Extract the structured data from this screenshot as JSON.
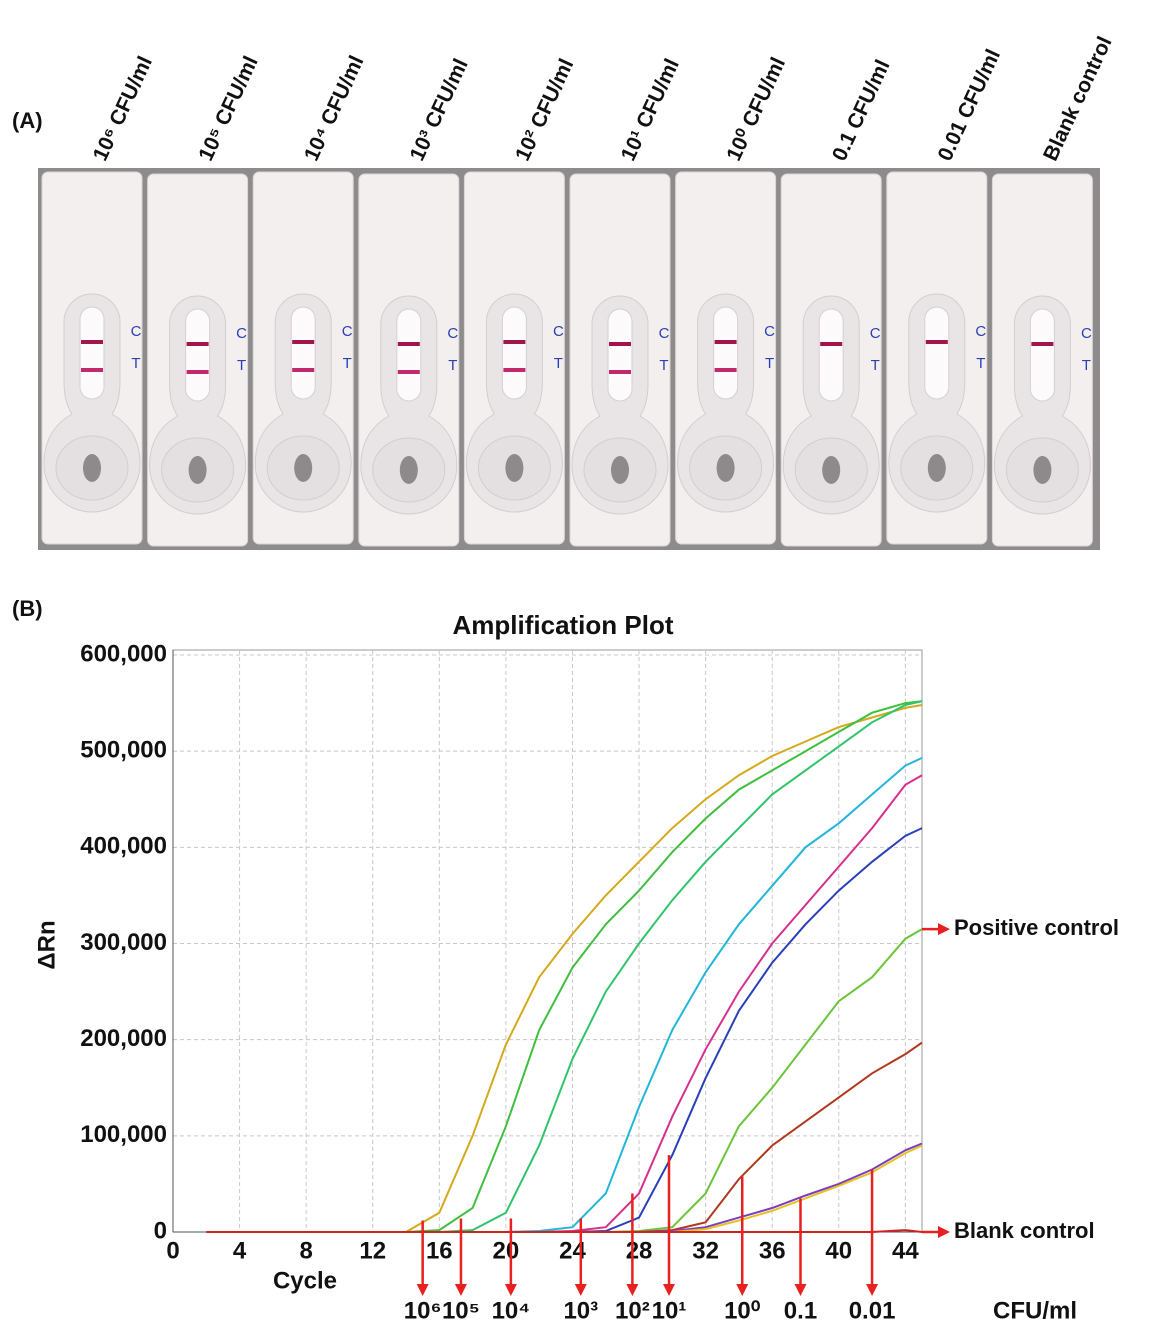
{
  "panel_a": {
    "label": "(A)",
    "strips": [
      {
        "label": "10⁶ CFU/ml",
        "test_line": true
      },
      {
        "label": "10⁵ CFU/ml",
        "test_line": true
      },
      {
        "label": "10⁴ CFU/ml",
        "test_line": true
      },
      {
        "label": "10³ CFU/ml",
        "test_line": true
      },
      {
        "label": "10² CFU/ml",
        "test_line": true
      },
      {
        "label": "10¹ CFU/ml",
        "test_line": true
      },
      {
        "label": "10⁰ CFU/ml",
        "test_line": true
      },
      {
        "label": "0.1 CFU/ml",
        "test_line": false
      },
      {
        "label": "0.01 CFU/ml",
        "test_line": false
      },
      {
        "label": "Blank control",
        "test_line": false
      }
    ],
    "control_mark": "C",
    "test_mark": "T"
  },
  "chart_data": {
    "type": "line",
    "panel_label": "(B)",
    "title": "Amplification Plot",
    "x_label": "Cycle",
    "y_label": "ΔRn",
    "xlim": [
      0,
      45
    ],
    "ylim": [
      0,
      600000
    ],
    "xticks": [
      0,
      4,
      8,
      12,
      16,
      20,
      24,
      28,
      32,
      36,
      40,
      44
    ],
    "yticks": [
      0,
      {
        "value": 100000,
        "label": "100,000"
      },
      {
        "value": 200000,
        "label": "200,000"
      },
      {
        "value": 300000,
        "label": "300,000"
      },
      {
        "value": 400000,
        "label": "400,000"
      },
      {
        "value": 500000,
        "label": "500,000"
      },
      {
        "value": 600000,
        "label": "600,000"
      }
    ],
    "grid": true,
    "x": [
      2,
      14,
      16,
      18,
      20,
      22,
      24,
      26,
      28,
      30,
      32,
      34,
      36,
      38,
      40,
      42,
      44,
      45
    ],
    "series": [
      {
        "color": "#d4a91c",
        "values": [
          0,
          0,
          20000,
          100000,
          195000,
          265000,
          310000,
          350000,
          385000,
          420000,
          450000,
          475000,
          495000,
          510000,
          525000,
          535000,
          545000,
          548000
        ]
      },
      {
        "color": "#3fbf3f",
        "values": [
          0,
          0,
          2000,
          25000,
          110000,
          210000,
          275000,
          320000,
          355000,
          395000,
          430000,
          460000,
          480000,
          500000,
          520000,
          540000,
          550000,
          552000
        ]
      },
      {
        "color": "#2fc46a",
        "values": [
          0,
          0,
          0,
          2000,
          20000,
          90000,
          180000,
          250000,
          300000,
          345000,
          385000,
          420000,
          455000,
          480000,
          505000,
          530000,
          548000,
          552000
        ]
      },
      {
        "color": "#22b6d8",
        "values": [
          0,
          0,
          0,
          0,
          0,
          1000,
          5000,
          40000,
          130000,
          210000,
          270000,
          320000,
          360000,
          400000,
          425000,
          455000,
          485000,
          493000
        ]
      },
      {
        "color": "#d6308e",
        "values": [
          0,
          0,
          0,
          0,
          0,
          0,
          1000,
          5000,
          40000,
          120000,
          190000,
          250000,
          300000,
          340000,
          380000,
          420000,
          465000,
          475000
        ]
      },
      {
        "color": "#2a3fb8",
        "values": [
          0,
          0,
          0,
          0,
          0,
          0,
          0,
          1000,
          15000,
          80000,
          160000,
          230000,
          280000,
          320000,
          355000,
          385000,
          412000,
          420000
        ]
      },
      {
        "color": "#6cc43a",
        "values": [
          0,
          0,
          0,
          0,
          0,
          0,
          0,
          0,
          1000,
          5000,
          40000,
          110000,
          150000,
          195000,
          240000,
          265000,
          305000,
          315000
        ]
      },
      {
        "color": "#b0381e",
        "values": [
          0,
          0,
          0,
          0,
          0,
          0,
          0,
          0,
          0,
          2000,
          10000,
          55000,
          90000,
          115000,
          140000,
          165000,
          185000,
          197000
        ]
      },
      {
        "color": "#7a3fc0",
        "values": [
          0,
          0,
          0,
          0,
          0,
          0,
          0,
          0,
          0,
          1000,
          5000,
          15000,
          25000,
          38000,
          50000,
          65000,
          85000,
          92000
        ]
      },
      {
        "color": "#e8c020",
        "values": [
          0,
          0,
          0,
          0,
          0,
          0,
          0,
          0,
          0,
          0,
          3000,
          12000,
          22000,
          35000,
          48000,
          62000,
          82000,
          90000
        ]
      },
      {
        "color": "#d02020",
        "values": [
          0,
          0,
          0,
          0,
          0,
          0,
          0,
          0,
          0,
          0,
          0,
          0,
          0,
          0,
          0,
          0,
          2000,
          0
        ]
      }
    ],
    "ct_markers": [
      {
        "x": 15,
        "y": 12000,
        "label": "10⁶"
      },
      {
        "x": 17.3,
        "y": 14000,
        "label": "10⁵"
      },
      {
        "x": 20.3,
        "y": 14000,
        "label": "10⁴"
      },
      {
        "x": 24.5,
        "y": 14000,
        "label": "10³"
      },
      {
        "x": 27.6,
        "y": 40000,
        "label": "10²"
      },
      {
        "x": 29.8,
        "y": 80000,
        "label": "10¹"
      },
      {
        "x": 34.2,
        "y": 58000,
        "label": "10⁰"
      },
      {
        "x": 37.7,
        "y": 35000,
        "label": "0.1"
      },
      {
        "x": 42,
        "y": 65000,
        "label": "0.01"
      }
    ],
    "ct_unit": "CFU/ml",
    "marker_color": "#e82020",
    "side_notes": [
      {
        "y": 315000,
        "label": "Positive control"
      },
      {
        "y": 0,
        "label": "Blank control"
      }
    ]
  }
}
